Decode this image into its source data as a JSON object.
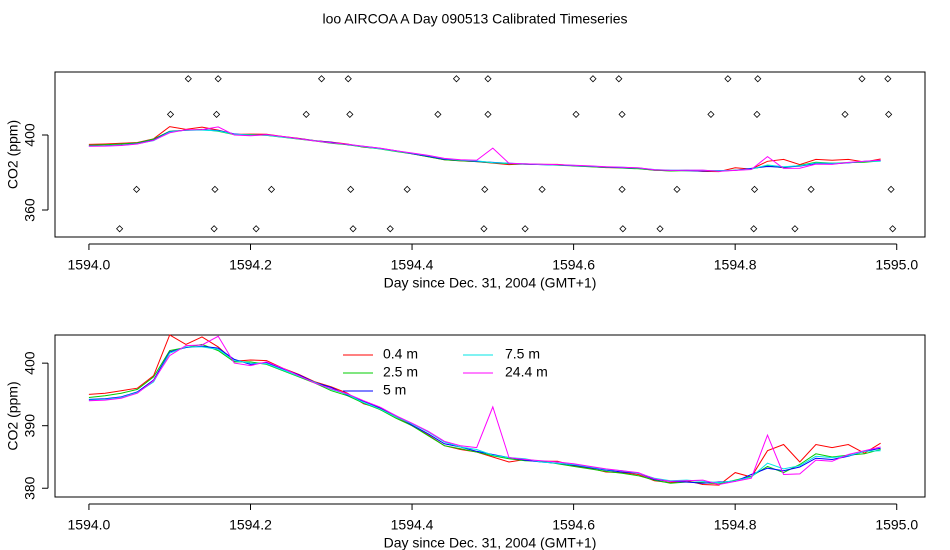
{
  "chart_data": [
    {
      "type": "scatter",
      "title": "loo AIRCOA A  Day 090513  Calibrated Timeseries",
      "xlabel": "Day since Dec. 31, 2004 (GMT+1)",
      "ylabel": "CO2 (ppm)",
      "xlim": [
        1593.958,
        1595.035
      ],
      "ylim": [
        345.6,
        433.6
      ],
      "xticks": [
        {
          "value": 1594,
          "label": "1594.0"
        },
        1594.2,
        1594.4,
        1594.6,
        1594.8,
        {
          "value": 1595,
          "label": "1595.0"
        }
      ],
      "yticks": [
        360,
        400
      ],
      "x": [
        1594.123,
        1594.16,
        1594.288,
        1594.321,
        1594.455,
        1594.494,
        1594.624,
        1594.656,
        1594.791,
        1594.828,
        1594.957,
        1594.989,
        1594.101,
        1594.158,
        1594.269,
        1594.323,
        1594.432,
        1594.494,
        1594.603,
        1594.66,
        1594.77,
        1594.827,
        1594.936,
        1594.99,
        1594.059,
        1594.156,
        1594.226,
        1594.324,
        1594.394,
        1594.49,
        1594.561,
        1594.66,
        1594.728,
        1594.824,
        1594.894,
        1594.993,
        1594.038,
        1594.155,
        1594.207,
        1594.327,
        1594.373,
        1594.489,
        1594.54,
        1594.661,
        1594.707,
        1594.823,
        1594.874,
        1594.995
      ],
      "values": [
        430,
        430,
        430,
        430,
        430,
        430,
        430,
        430,
        430,
        430,
        430,
        430,
        411,
        411,
        411,
        411,
        411,
        411,
        411,
        411,
        411,
        411,
        411,
        411,
        371,
        371,
        371,
        371,
        371,
        371,
        371,
        371,
        371,
        371,
        371,
        371,
        350,
        350,
        350,
        350,
        350,
        350,
        350,
        350,
        350,
        350,
        350,
        350
      ]
    },
    {
      "type": "line",
      "xlabel": "Day since Dec. 31, 2004 (GMT+1)",
      "ylabel": "CO2 (ppm)",
      "xlim": [
        1593.958,
        1595.035
      ],
      "ylim": [
        378.6,
        404.5
      ],
      "xticks": [
        {
          "value": 1594,
          "label": "1594.0"
        },
        1594.2,
        1594.4,
        1594.6,
        1594.8,
        {
          "value": 1595,
          "label": "1595.0"
        }
      ],
      "yticks": [
        380,
        390,
        400
      ],
      "x": [
        1594,
        1594.02,
        1594.04,
        1594.06,
        1594.08,
        1594.1,
        1594.12,
        1594.14,
        1594.16,
        1594.18,
        1594.2,
        1594.22,
        1594.24,
        1594.26,
        1594.28,
        1594.3,
        1594.32,
        1594.34,
        1594.36,
        1594.38,
        1594.4,
        1594.42,
        1594.44,
        1594.46,
        1594.48,
        1594.5,
        1594.52,
        1594.54,
        1594.56,
        1594.58,
        1594.6,
        1594.62,
        1594.64,
        1594.66,
        1594.68,
        1594.7,
        1594.72,
        1594.74,
        1594.76,
        1594.78,
        1594.8,
        1594.82,
        1594.84,
        1594.86,
        1594.88,
        1594.9,
        1594.92,
        1594.94,
        1594.96,
        1594.98
      ],
      "series": [
        {
          "name": "0.4 m",
          "color": "#ff0000",
          "values": [
            395,
            395.2,
            395.6,
            396,
            398,
            404.5,
            403,
            404.2,
            402.6,
            400.3,
            400.5,
            400.4,
            399.2,
            398.2,
            397,
            396.2,
            395.2,
            393.5,
            392.8,
            391.4,
            390,
            388.5,
            386.8,
            386.2,
            385.8,
            385,
            384.2,
            384.6,
            384.3,
            384.3,
            383.6,
            383.2,
            382.6,
            382.5,
            382.2,
            381.2,
            380.9,
            381.2,
            380.6,
            380.5,
            382.5,
            381.8,
            386,
            387,
            384.2,
            387,
            386.5,
            387,
            385.6,
            387.2
          ]
        },
        {
          "name": "2.5 m",
          "color": "#00cd00",
          "values": [
            394.5,
            394.8,
            395.2,
            395.8,
            397.8,
            402,
            402.5,
            403,
            402,
            400.2,
            400.2,
            399.8,
            398.8,
            397.8,
            396.8,
            395.6,
            394.8,
            393.6,
            392.6,
            391.2,
            390,
            388.4,
            386.8,
            386.3,
            385.8,
            385.2,
            384.7,
            384.4,
            384.3,
            383.9,
            383.5,
            383.1,
            382.7,
            382.4,
            382,
            381.3,
            380.8,
            381,
            380.9,
            380.7,
            381.3,
            381.9,
            383.5,
            382.5,
            383.8,
            385.5,
            385,
            385.3,
            385.5,
            386.2
          ]
        },
        {
          "name": "5 m",
          "color": "#0000ff",
          "values": [
            394.2,
            394.3,
            394.6,
            395.4,
            397.3,
            401.8,
            402.5,
            402.7,
            402.4,
            400.6,
            399.8,
            400.1,
            399.1,
            398.1,
            396.9,
            396.1,
            394.9,
            393.9,
            392.9,
            391.6,
            390.1,
            388.7,
            387.1,
            386.6,
            385.9,
            385.4,
            384.9,
            384.5,
            384.2,
            384,
            383.7,
            383.3,
            382.9,
            382.6,
            382.4,
            381.4,
            381.1,
            381,
            380.8,
            381,
            381.1,
            382.2,
            383.2,
            382.8,
            383.4,
            384.8,
            384.6,
            385.1,
            385.9,
            386.4
          ]
        },
        {
          "name": "7.5 m",
          "color": "#00e5e5",
          "values": [
            394.1,
            394.2,
            394.5,
            395.3,
            397,
            401.6,
            402.6,
            402.6,
            402.2,
            400.4,
            400,
            399.9,
            398.9,
            397.9,
            396.9,
            395.8,
            395,
            393.7,
            392.7,
            391.4,
            390.3,
            389,
            387.4,
            386.6,
            386.2,
            385.3,
            384.9,
            384.7,
            384.2,
            384,
            383.8,
            383.4,
            383,
            382.8,
            382.4,
            381.6,
            381.2,
            381.3,
            381.1,
            380.9,
            381.2,
            381.8,
            384,
            383.1,
            383.6,
            385.1,
            384.9,
            385.2,
            385.9,
            386
          ]
        },
        {
          "name": "24.4 m",
          "color": "#ff00ff",
          "values": [
            394,
            394.1,
            394.4,
            395.2,
            397.2,
            401.2,
            402.8,
            402.9,
            404.3,
            400,
            399.6,
            400.2,
            399.2,
            398,
            396.8,
            395.9,
            395.1,
            394,
            393,
            391.6,
            390.4,
            389.1,
            387.5,
            386.8,
            386.5,
            393,
            384.9,
            384.6,
            384.4,
            384.2,
            383.9,
            383.5,
            383.1,
            382.8,
            382.5,
            381.5,
            381.1,
            381.2,
            381.3,
            380.6,
            381.1,
            381.6,
            388.5,
            382.2,
            382.3,
            384.5,
            384.3,
            385.4,
            386,
            386.6
          ]
        }
      ]
    }
  ]
}
